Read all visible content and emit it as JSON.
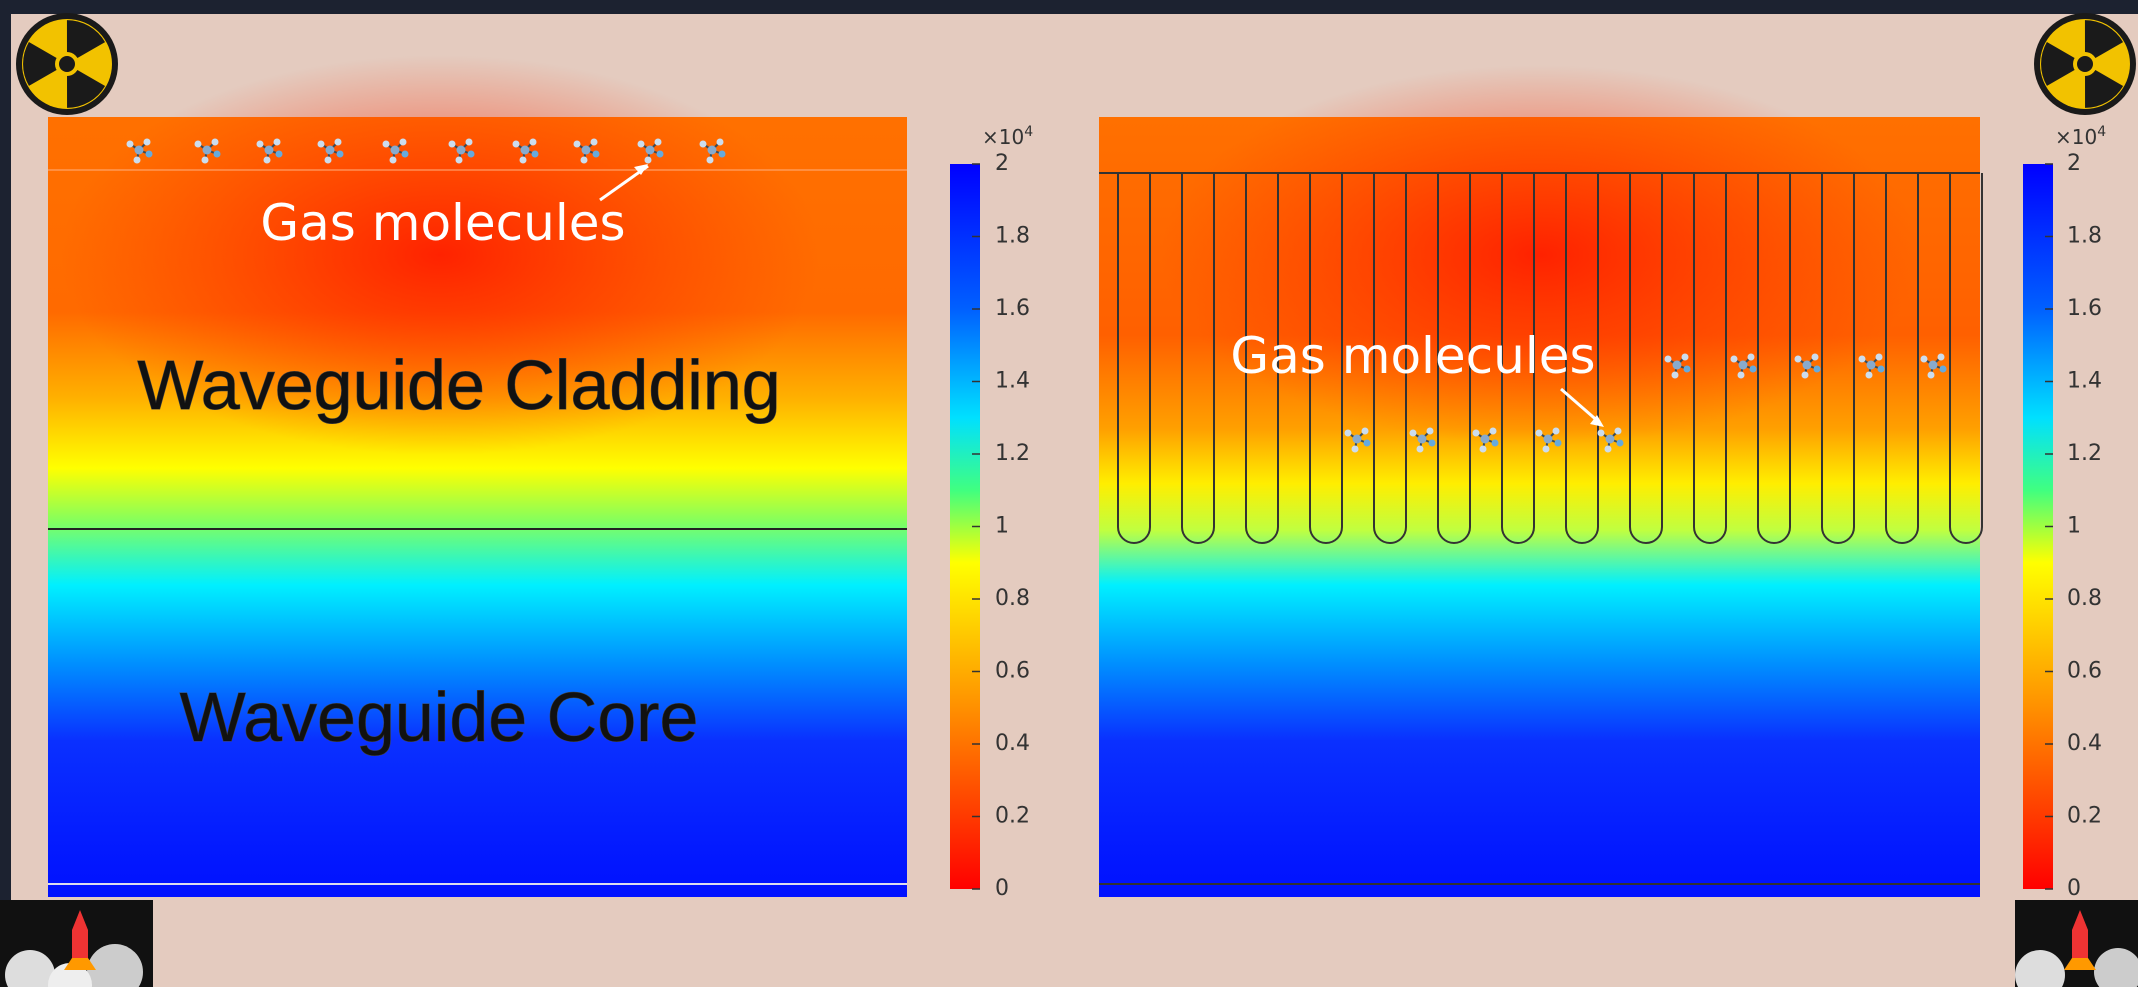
{
  "left_panel": {
    "annotation": "Gas molecules",
    "cladding_label": "Waveguide Cladding",
    "core_label": "Waveguide Core"
  },
  "right_panel": {
    "annotation": "Gas molecules"
  },
  "colorbars": [
    {
      "multiplier": "×10",
      "exponent": "4",
      "ticks": [
        2,
        1.8,
        1.6,
        1.4,
        1.2,
        1,
        0.8,
        0.6,
        0.4,
        0.2,
        0
      ]
    },
    {
      "multiplier": "×10",
      "exponent": "4",
      "ticks": [
        2,
        1.8,
        1.6,
        1.4,
        1.2,
        1,
        0.8,
        0.6,
        0.4,
        0.2,
        0
      ]
    }
  ]
}
